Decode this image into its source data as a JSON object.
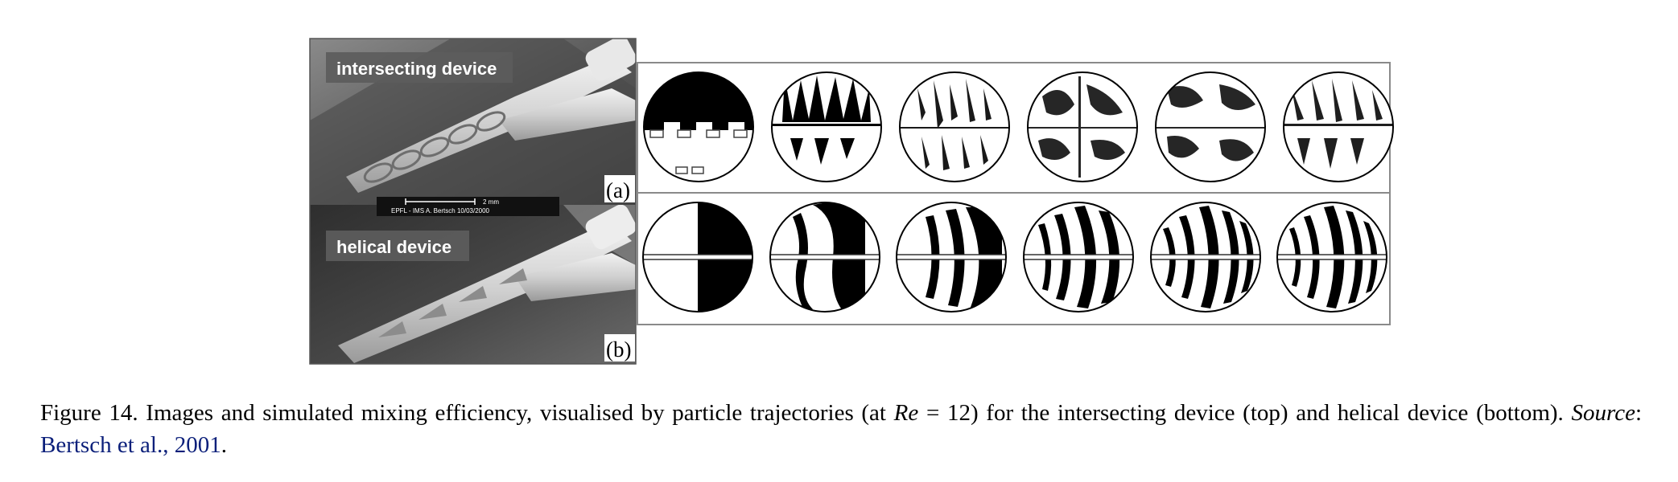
{
  "figure": {
    "panel_a": {
      "overlay_label": "intersecting device",
      "letter": "(a)"
    },
    "panel_b": {
      "overlay_label": "helical device",
      "letter": "(b)"
    },
    "scale_bar": {
      "length_label": "2 mm",
      "credit": "EPFL - IMS   A. Bertsch 10/03/2000"
    },
    "sim_rows": [
      {
        "row": "intersecting",
        "steps": 6
      },
      {
        "row": "helical",
        "steps": 6
      }
    ]
  },
  "caption": {
    "lead": "Figure 14. Images and simulated mixing efficiency, visualised by particle trajectories (at ",
    "math_var": "Re",
    "math_rest": " = 12) for the intersecting device (top) and helical device (bottom). ",
    "source_label": "Source",
    "colon": ": ",
    "reference": "Bertsch et al., 2001",
    "end": "."
  }
}
